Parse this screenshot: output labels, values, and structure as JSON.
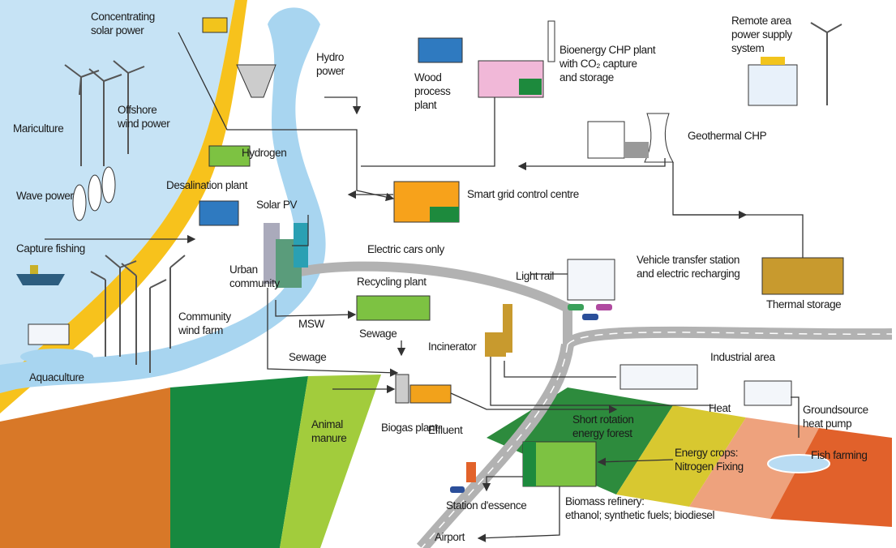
{
  "labels": [
    [
      "Concentrating",
      "solar power"
    ],
    [
      "Hydro",
      "power"
    ],
    [
      "Wood",
      "process",
      "plant"
    ],
    [
      "Bioenergy CHP plant",
      "with CO₂ capture",
      "and storage"
    ],
    [
      "Remote area",
      "power supply",
      "system"
    ],
    [
      "Offshore",
      "wind power"
    ],
    [
      "Mariculture"
    ],
    [
      "Hydrogen"
    ],
    [
      "Geothermal CHP"
    ],
    [
      "Wave power"
    ],
    [
      "Desalination plant"
    ],
    [
      "Solar PV"
    ],
    [
      "Smart grid control centre"
    ],
    [
      "Capture fishing"
    ],
    [
      "Electric cars only"
    ],
    [
      "Vehicle transfer station",
      "and electric recharging"
    ],
    [
      "Urban",
      "community"
    ],
    [
      "Light rail"
    ],
    [
      "Recycling plant"
    ],
    [
      "Thermal storage"
    ],
    [
      "Community",
      "wind farm"
    ],
    [
      "MSW"
    ],
    [
      "Sewage"
    ],
    [
      "Incinerator"
    ],
    [
      "Industrial area"
    ],
    [
      "Sewage"
    ],
    [
      "Aquaculture"
    ],
    [
      "Heat"
    ],
    [
      "Groundsource",
      "heat pump"
    ],
    [
      "Animal",
      "manure"
    ],
    [
      "Biogas plant"
    ],
    [
      "Effluent"
    ],
    [
      "Short rotation",
      "energy forest"
    ],
    [
      "Energy crops:",
      "Nitrogen Fixing"
    ],
    [
      "Fish farming"
    ],
    [
      "Station d'essence"
    ],
    [
      "Biomass refinery:",
      "ethanol; synthetic fuels; biodiesel"
    ],
    [
      "Airport"
    ]
  ]
}
